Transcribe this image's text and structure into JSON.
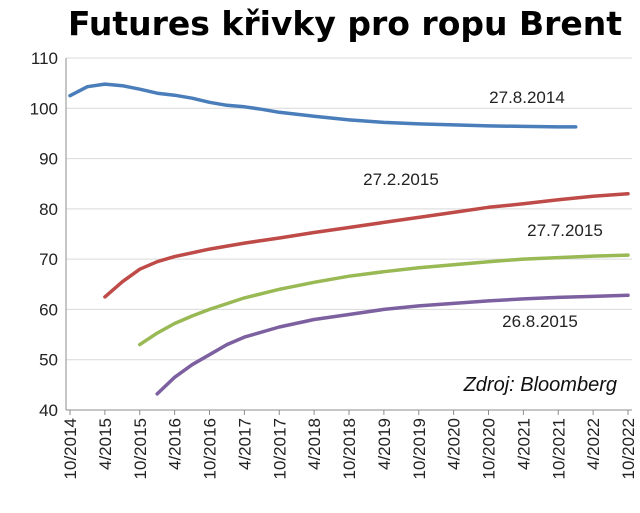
{
  "chart_data": {
    "type": "line",
    "title": "Futures křivky pro ropu Brent",
    "xlabel": "",
    "ylabel": "",
    "ylim": [
      40,
      110
    ],
    "yticks": [
      40,
      50,
      60,
      70,
      80,
      90,
      100,
      110
    ],
    "xlim": [
      "10/2014",
      "10/2022"
    ],
    "xticks": [
      "10/2014",
      "4/2015",
      "10/2015",
      "4/2016",
      "10/2016",
      "4/2017",
      "10/2017",
      "4/2018",
      "10/2018",
      "4/2019",
      "10/2019",
      "4/2020",
      "10/2020",
      "4/2021",
      "10/2021",
      "4/2022",
      "10/2022"
    ],
    "grid": true,
    "source": "Zdroj: Bloomberg",
    "series": [
      {
        "name": "27.8.2014",
        "color": "#4a7ebb",
        "x": [
          "10/2014",
          "1/2015",
          "4/2015",
          "7/2015",
          "10/2015",
          "1/2016",
          "4/2016",
          "7/2016",
          "10/2016",
          "1/2017",
          "4/2017",
          "7/2017",
          "10/2017",
          "4/2018",
          "10/2018",
          "4/2019",
          "10/2019",
          "4/2020",
          "10/2020",
          "4/2021",
          "10/2021",
          "1/2022"
        ],
        "values": [
          102.5,
          104.3,
          104.8,
          104.5,
          103.8,
          103.0,
          102.6,
          102.0,
          101.2,
          100.6,
          100.3,
          99.8,
          99.2,
          98.4,
          97.7,
          97.2,
          96.9,
          96.7,
          96.5,
          96.4,
          96.3,
          96.3
        ]
      },
      {
        "name": "27.2.2015",
        "color": "#be4b48",
        "x": [
          "4/2015",
          "7/2015",
          "10/2015",
          "1/2016",
          "4/2016",
          "10/2016",
          "4/2017",
          "10/2017",
          "4/2018",
          "10/2018",
          "4/2019",
          "10/2019",
          "4/2020",
          "10/2020",
          "4/2021",
          "10/2021",
          "4/2022",
          "10/2022"
        ],
        "values": [
          62.5,
          65.5,
          68.0,
          69.5,
          70.5,
          72.0,
          73.2,
          74.2,
          75.3,
          76.3,
          77.3,
          78.3,
          79.3,
          80.3,
          81.0,
          81.8,
          82.5,
          83.0
        ]
      },
      {
        "name": "27.7.2015",
        "color": "#98b954",
        "x": [
          "10/2015",
          "1/2016",
          "4/2016",
          "7/2016",
          "10/2016",
          "4/2017",
          "10/2017",
          "4/2018",
          "10/2018",
          "4/2019",
          "10/2019",
          "4/2020",
          "10/2020",
          "4/2021",
          "10/2021",
          "4/2022",
          "10/2022"
        ],
        "values": [
          53.0,
          55.3,
          57.2,
          58.7,
          60.0,
          62.3,
          64.0,
          65.4,
          66.6,
          67.5,
          68.3,
          68.9,
          69.5,
          70.0,
          70.3,
          70.6,
          70.8
        ]
      },
      {
        "name": "26.8.2015",
        "color": "#7d60a0",
        "x": [
          "1/2016",
          "4/2016",
          "7/2016",
          "10/2016",
          "1/2017",
          "4/2017",
          "10/2017",
          "4/2018",
          "10/2018",
          "4/2019",
          "10/2019",
          "4/2020",
          "10/2020",
          "4/2021",
          "10/2021",
          "4/2022",
          "10/2022"
        ],
        "values": [
          43.2,
          46.5,
          49.0,
          51.0,
          53.0,
          54.5,
          56.5,
          58.0,
          59.0,
          60.0,
          60.7,
          61.2,
          61.7,
          62.1,
          62.4,
          62.6,
          62.8
        ]
      }
    ]
  }
}
